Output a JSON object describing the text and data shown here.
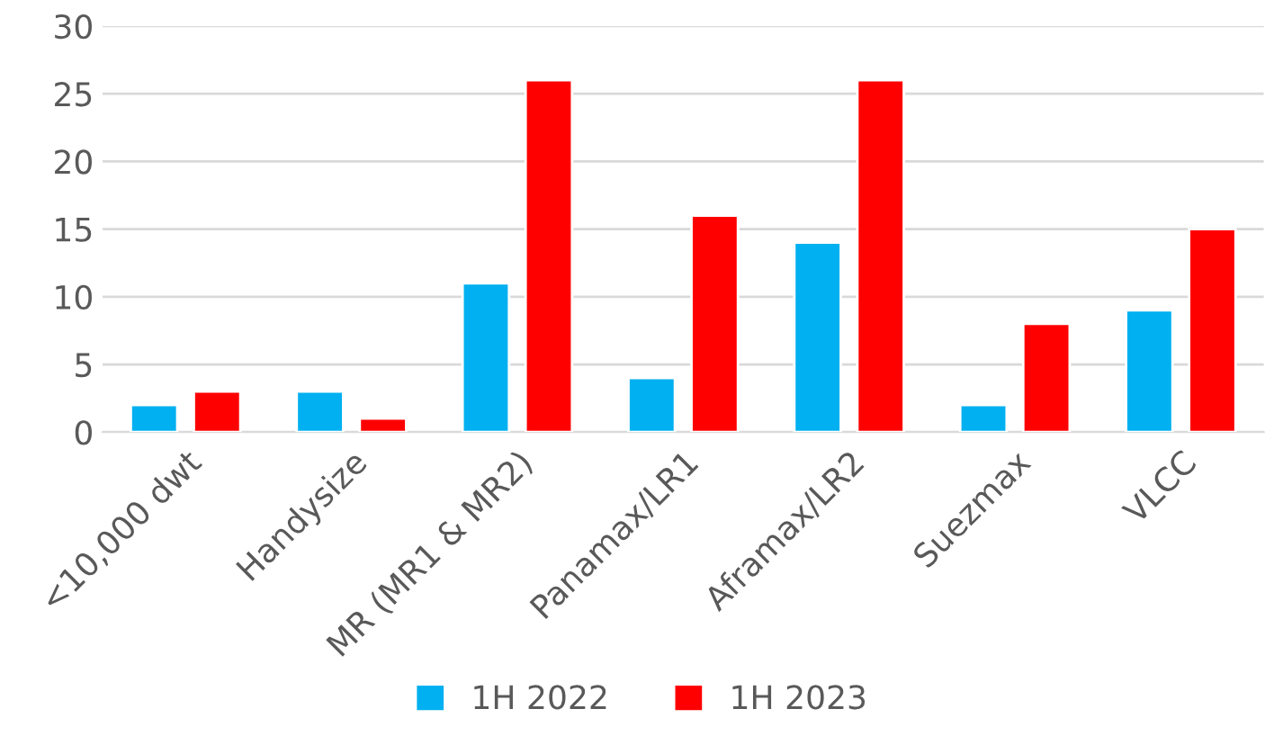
{
  "chart_data": {
    "type": "bar",
    "categories": [
      "<10,000 dwt",
      "Handysize",
      "MR (MR1 & MR2)",
      "Panamax/LR1",
      "Aframax/LR2",
      "Suezmax",
      "VLCC"
    ],
    "series": [
      {
        "name": "1H 2022",
        "color": "#00b0f0",
        "values": [
          2,
          3,
          11,
          4,
          14,
          2,
          9
        ]
      },
      {
        "name": "1H 2023",
        "color": "#ff0000",
        "values": [
          3,
          1,
          26,
          16,
          26,
          8,
          15
        ]
      }
    ],
    "ylim": [
      0,
      30
    ],
    "yticks": [
      0,
      5,
      10,
      15,
      20,
      25,
      30
    ],
    "grid": "y",
    "legend": "bottom"
  }
}
